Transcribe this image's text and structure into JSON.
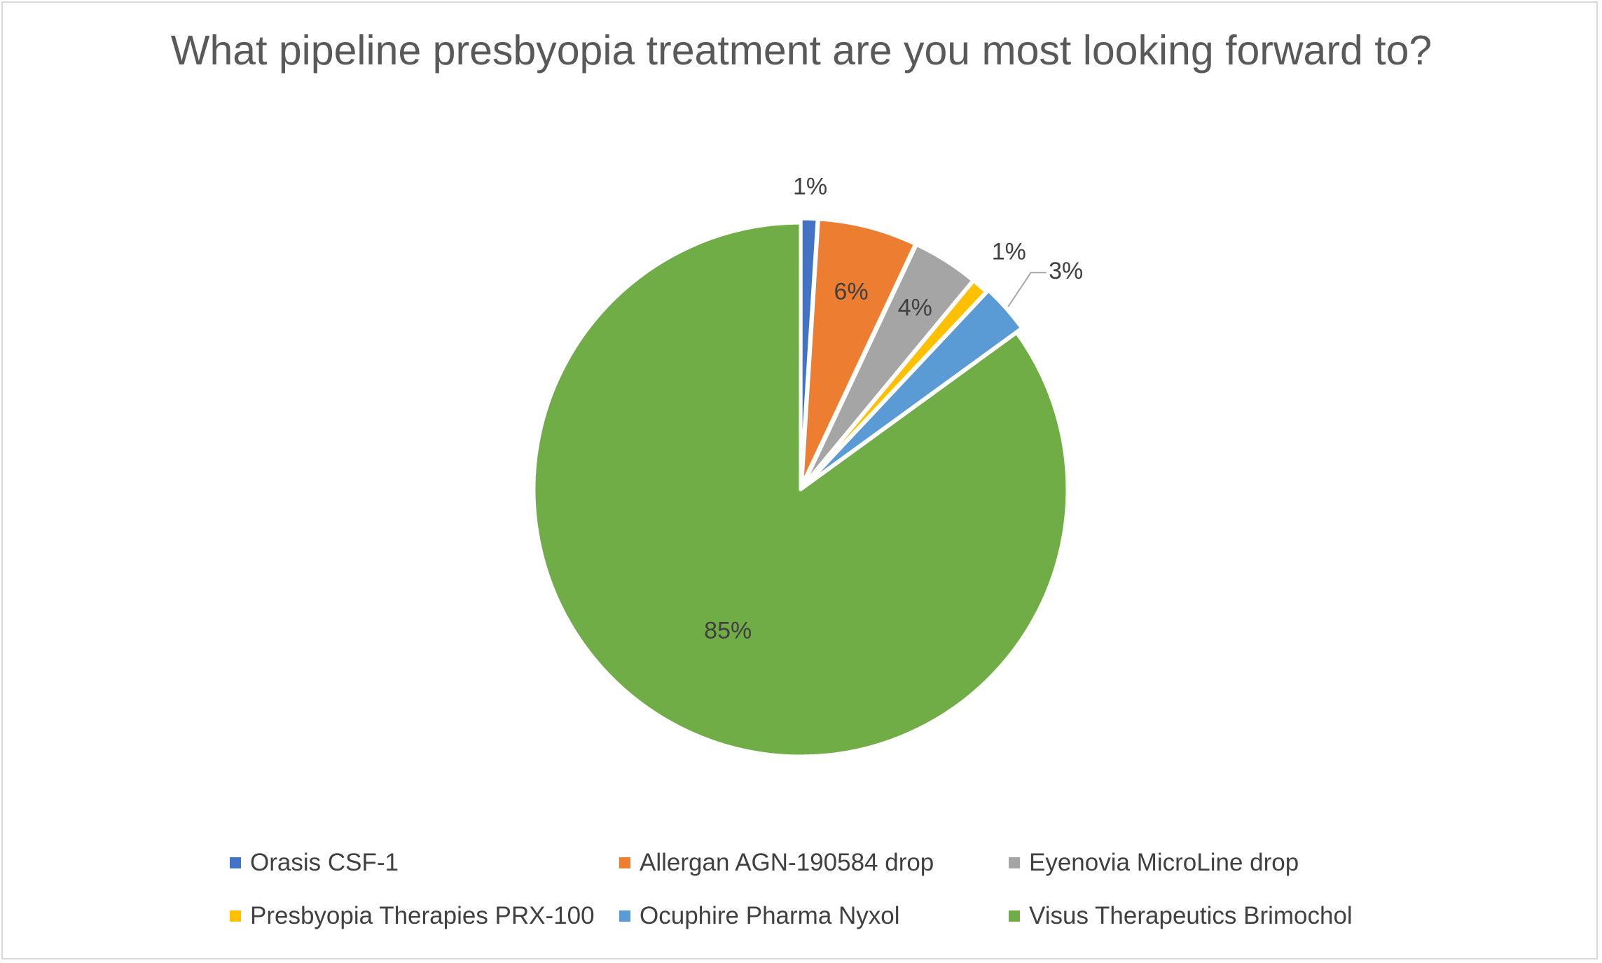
{
  "chart_data": {
    "type": "pie",
    "title": "What pipeline presbyopia treatment are you most looking forward to?",
    "slices": [
      {
        "label": "Orasis CSF-1",
        "value": 1,
        "data_label": "1%",
        "color": "#4472C4"
      },
      {
        "label": "Allergan AGN-190584 drop",
        "value": 6,
        "data_label": "6%",
        "color": "#ED7D31"
      },
      {
        "label": "Eyenovia MicroLine drop",
        "value": 4,
        "data_label": "4%",
        "color": "#A5A5A5"
      },
      {
        "label": "Presbyopia Therapies PRX-100",
        "value": 1,
        "data_label": "1%",
        "color": "#FFC000"
      },
      {
        "label": "Ocuphire Pharma Nyxol",
        "value": 3,
        "data_label": "3%",
        "color": "#5B9BD5"
      },
      {
        "label": "Visus Therapeutics Brimochol",
        "value": 85,
        "data_label": "85%",
        "color": "#70AD47"
      }
    ],
    "legend_position": "bottom"
  }
}
